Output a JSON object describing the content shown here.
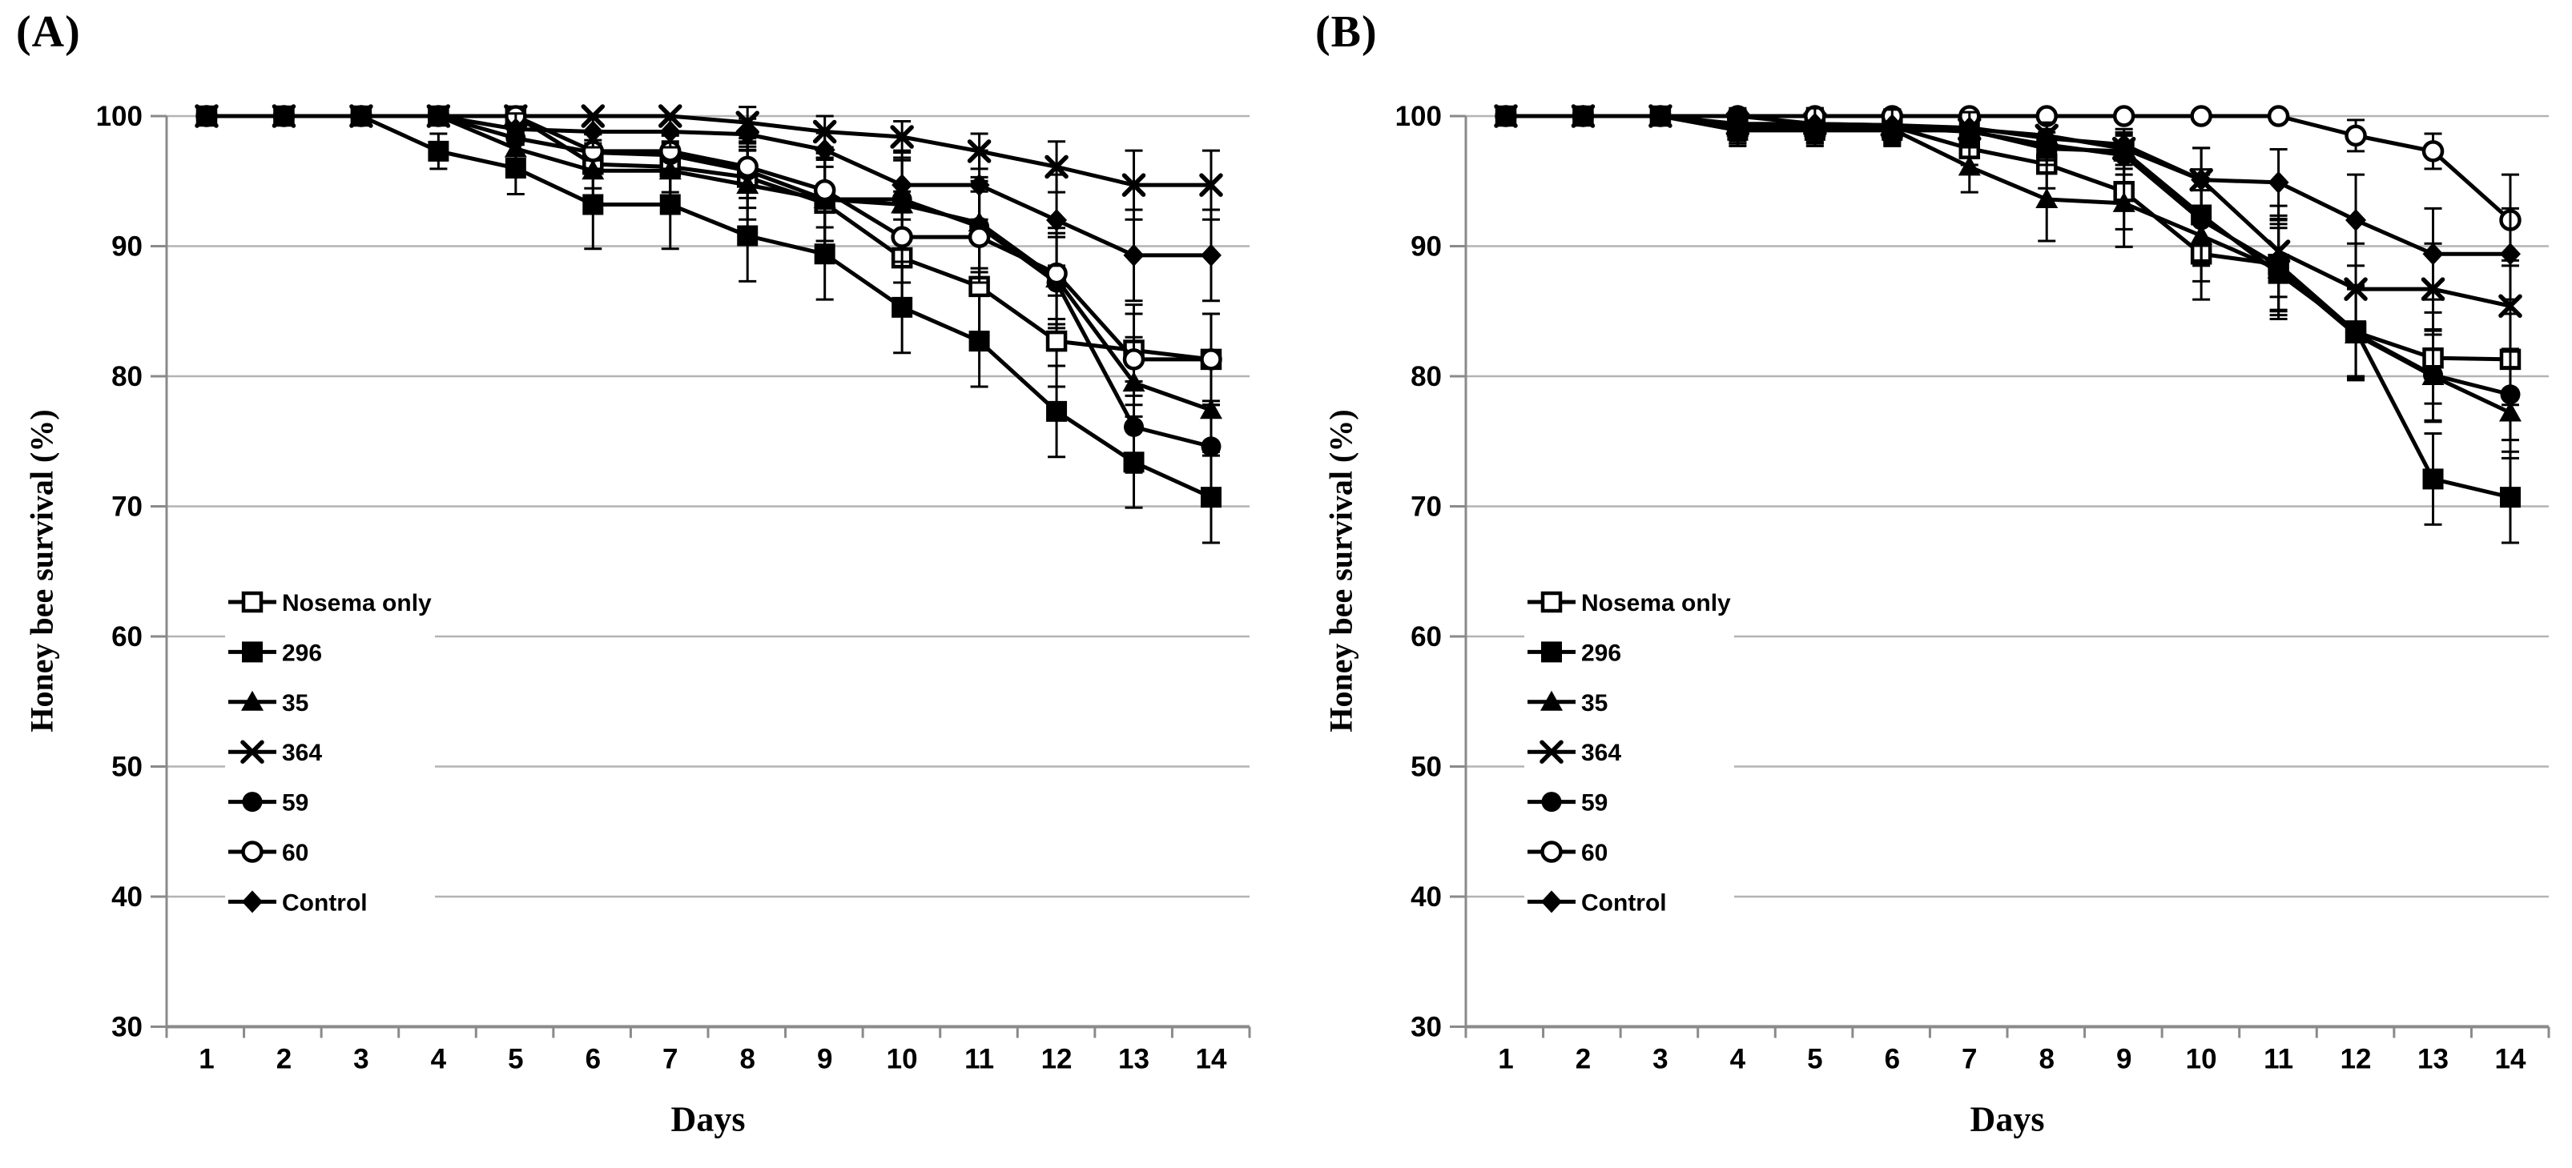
{
  "figure": {
    "background": "#ffffff",
    "colors": {
      "line": "#000000",
      "grid": "#b3b3b3",
      "axis": "#8a8a8a",
      "text": "#000000",
      "legend_bg": "#ffffff"
    }
  },
  "chart_data": [
    {
      "type": "line",
      "panel_label": "(A)",
      "xlabel": "Days",
      "ylabel": "Honey bee survival (%)",
      "x": [
        1,
        2,
        3,
        4,
        5,
        6,
        7,
        8,
        9,
        10,
        11,
        12,
        13,
        14
      ],
      "ylim": [
        30,
        100
      ],
      "yticks": [
        30,
        40,
        50,
        60,
        70,
        80,
        90,
        100
      ],
      "grid": true,
      "legend_position": "left-middle",
      "legend": [
        "Nosema only",
        "296",
        "35",
        "364",
        "59",
        "60",
        "Control"
      ],
      "series": [
        {
          "name": "Nosema only",
          "marker": "open-square",
          "values": [
            100,
            100,
            100,
            100,
            100,
            96.3,
            96.1,
            95.3,
            93.3,
            89.1,
            86.9,
            82.7,
            82.0,
            81.3
          ]
        },
        {
          "name": "296",
          "marker": "filled-square",
          "values": [
            100,
            100,
            100,
            97.3,
            96.0,
            93.2,
            93.2,
            90.8,
            89.4,
            85.3,
            82.7,
            77.3,
            73.4,
            70.7
          ]
        },
        {
          "name": "35",
          "marker": "filled-triangle",
          "values": [
            100,
            100,
            100,
            100,
            97.5,
            95.8,
            95.8,
            94.7,
            93.6,
            93.2,
            91.8,
            87.5,
            79.5,
            77.4
          ]
        },
        {
          "name": "364",
          "marker": "x-cross",
          "values": [
            100,
            100,
            100,
            100,
            100,
            100,
            100,
            99.5,
            98.8,
            98.4,
            97.3,
            96.1,
            94.7,
            94.7
          ]
        },
        {
          "name": "59",
          "marker": "filled-circle",
          "values": [
            100,
            100,
            100,
            100,
            98.3,
            97.2,
            97.0,
            95.8,
            93.6,
            93.6,
            91.5,
            87.2,
            76.1,
            74.6
          ]
        },
        {
          "name": "60",
          "marker": "open-circle",
          "values": [
            100,
            100,
            100,
            100,
            100,
            97.3,
            97.3,
            96.1,
            94.3,
            90.7,
            90.7,
            87.9,
            81.3,
            81.3
          ]
        },
        {
          "name": "Control",
          "marker": "filled-diamond",
          "values": [
            100,
            100,
            100,
            100,
            99.0,
            98.8,
            98.8,
            98.6,
            97.4,
            94.7,
            94.7,
            92.0,
            89.3,
            89.3
          ]
        }
      ]
    },
    {
      "type": "line",
      "panel_label": "(B)",
      "xlabel": "Days",
      "ylabel": "Honey bee survival (%)",
      "x": [
        1,
        2,
        3,
        4,
        5,
        6,
        7,
        8,
        9,
        10,
        11,
        12,
        13,
        14
      ],
      "ylim": [
        30,
        100
      ],
      "yticks": [
        30,
        40,
        50,
        60,
        70,
        80,
        90,
        100
      ],
      "grid": true,
      "legend_position": "left-middle",
      "legend": [
        "Nosema only",
        "296",
        "35",
        "364",
        "59",
        "60",
        "Control"
      ],
      "series": [
        {
          "name": "Nosema only",
          "marker": "open-square",
          "values": [
            100,
            100,
            100,
            99.3,
            99.2,
            99.2,
            97.5,
            96.3,
            94.2,
            89.4,
            88.6,
            83.4,
            81.4,
            81.3
          ]
        },
        {
          "name": "296",
          "marker": "filled-square",
          "values": [
            100,
            100,
            100,
            98.9,
            98.9,
            98.9,
            98.9,
            97.5,
            97.3,
            92.4,
            87.9,
            83.5,
            72.1,
            70.7
          ]
        },
        {
          "name": "35",
          "marker": "filled-triangle",
          "values": [
            100,
            100,
            100,
            99.1,
            99.1,
            99.0,
            96.1,
            93.6,
            93.3,
            90.8,
            88.2,
            83.2,
            80.0,
            77.2
          ]
        },
        {
          "name": "364",
          "marker": "x-cross",
          "values": [
            100,
            100,
            100,
            99.4,
            99.4,
            99.3,
            99.0,
            98.5,
            97.5,
            95.1,
            89.6,
            86.7,
            86.7,
            85.4
          ]
        },
        {
          "name": "59",
          "marker": "filled-circle",
          "values": [
            100,
            100,
            100,
            99.1,
            99.1,
            99.1,
            98.8,
            97.8,
            97.0,
            92.0,
            88.5,
            83.3,
            80.1,
            78.6
          ]
        },
        {
          "name": "60",
          "marker": "open-circle",
          "values": [
            100,
            100,
            100,
            100,
            100,
            100,
            100,
            100,
            100,
            100,
            100,
            98.5,
            97.3,
            92.0
          ]
        },
        {
          "name": "Control",
          "marker": "filled-diamond",
          "values": [
            100,
            100,
            100,
            100,
            99.4,
            99.3,
            99.1,
            98.3,
            97.8,
            95.1,
            94.9,
            92.0,
            89.4,
            89.4
          ]
        }
      ]
    }
  ]
}
